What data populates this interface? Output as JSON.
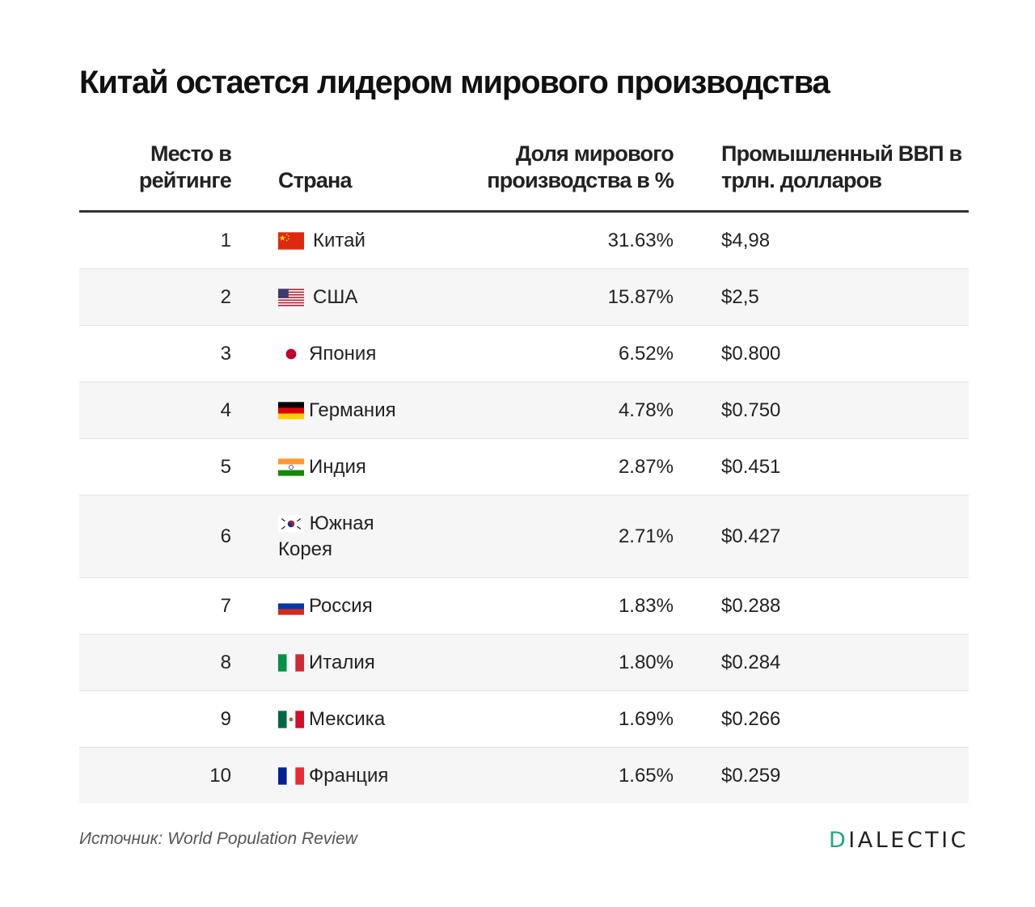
{
  "title": "Китай остается лидером мирового производства",
  "headers": {
    "rank": "Место в рейтинге",
    "country": "Страна",
    "share": "Доля мирового производства в %",
    "gdp": "Промышленный ВВП в трлн. долларов"
  },
  "rows": [
    {
      "rank": "1",
      "country": "Китай",
      "flag": "china-flag-icon",
      "share": "31.63%",
      "gdp": "$4,98"
    },
    {
      "rank": "2",
      "country": "США",
      "flag": "usa-flag-icon",
      "share": "15.87%",
      "gdp": "$2,5"
    },
    {
      "rank": "3",
      "country": "Япония",
      "flag": "japan-flag-icon",
      "share": "6.52%",
      "gdp": "$0.800"
    },
    {
      "rank": "4",
      "country": "Германия",
      "flag": "germany-flag-icon",
      "share": "4.78%",
      "gdp": "$0.750"
    },
    {
      "rank": "5",
      "country": "Индия",
      "flag": "india-flag-icon",
      "share": "2.87%",
      "gdp": "$0.451"
    },
    {
      "rank": "6",
      "country": "Южная Корея",
      "flag": "south-korea-flag-icon",
      "share": "2.71%",
      "gdp": "$0.427"
    },
    {
      "rank": "7",
      "country": "Россия",
      "flag": "russia-flag-icon",
      "share": "1.83%",
      "gdp": "$0.288"
    },
    {
      "rank": "8",
      "country": "Италия",
      "flag": "italy-flag-icon",
      "share": "1.80%",
      "gdp": "$0.284"
    },
    {
      "rank": "9",
      "country": "Мексика",
      "flag": "mexico-flag-icon",
      "share": "1.69%",
      "gdp": "$0.266"
    },
    {
      "rank": "10",
      "country": "Франция",
      "flag": "france-flag-icon",
      "share": "1.65%",
      "gdp": "$0.259"
    }
  ],
  "source": "Источник: World Population Review",
  "logo": {
    "first": "D",
    "rest": "IALECTIC"
  },
  "colors": {
    "accent": "#1ba87a",
    "rule": "#333333",
    "stripe": "#f6f6f6"
  }
}
